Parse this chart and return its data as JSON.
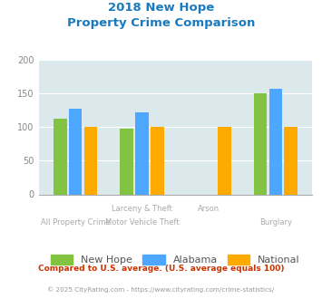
{
  "title_line1": "2018 New Hope",
  "title_line2": "Property Crime Comparison",
  "cat_labels_row1": [
    "",
    "Larceny & Theft",
    "Arson",
    ""
  ],
  "cat_labels_row2": [
    "All Property Crime",
    "Motor Vehicle Theft",
    "",
    "Burglary"
  ],
  "new_hope": [
    113,
    97,
    null,
    150
  ],
  "alabama": [
    127,
    122,
    null,
    157
  ],
  "national": [
    100,
    100,
    100,
    100
  ],
  "color_new_hope": "#82c341",
  "color_alabama": "#4da6ff",
  "color_national": "#ffaa00",
  "ylim": [
    0,
    200
  ],
  "yticks": [
    0,
    50,
    100,
    150,
    200
  ],
  "bg_color": "#dce9ec",
  "legend_labels": [
    "New Hope",
    "Alabama",
    "National"
  ],
  "footnote1": "Compared to U.S. average. (U.S. average equals 100)",
  "footnote2": "© 2025 CityRating.com - https://www.cityrating.com/crime-statistics/",
  "title_color": "#1a7abf",
  "footnote1_color": "#cc3300",
  "footnote2_color": "#999999",
  "label_row1_color": "#aaaaaa",
  "label_row2_color": "#aaaaaa"
}
